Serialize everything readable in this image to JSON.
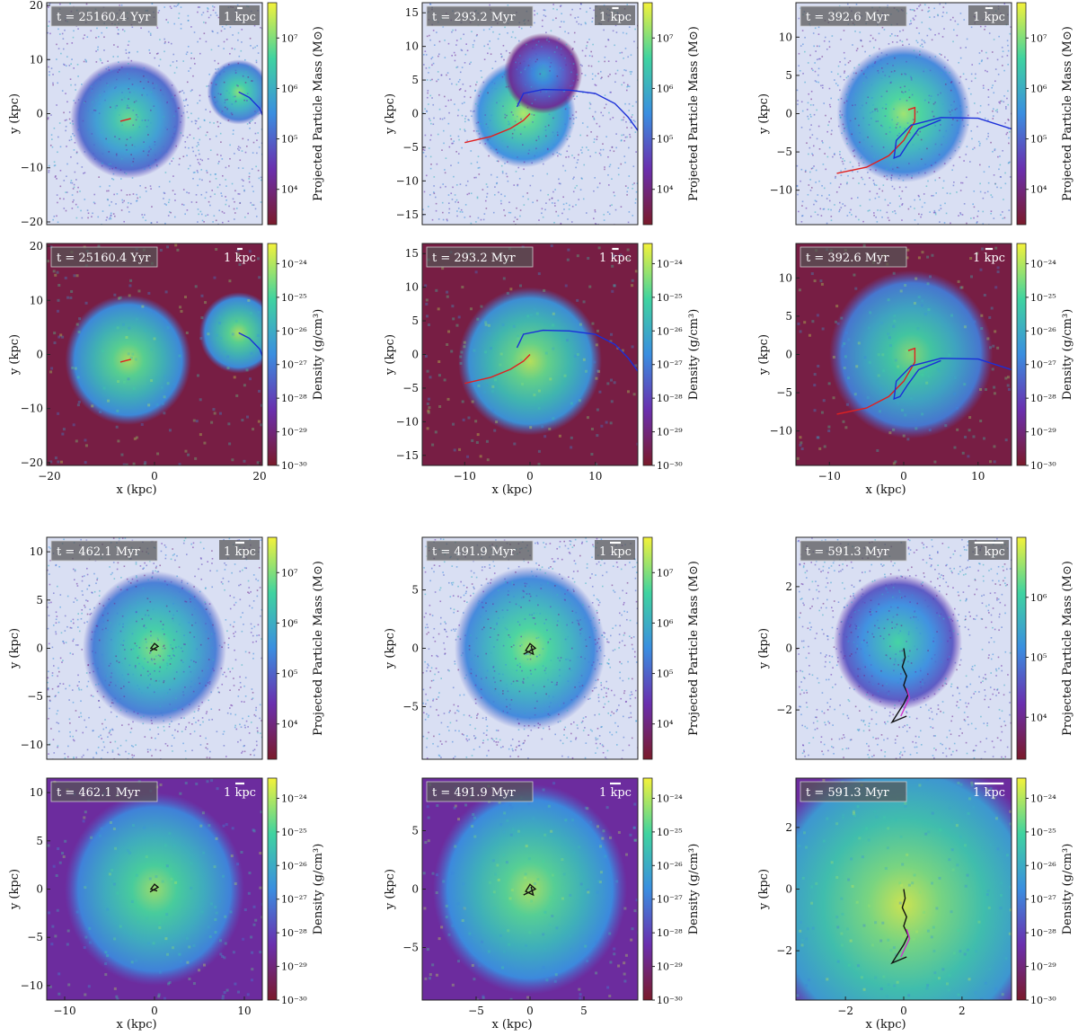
{
  "figure": {
    "x_axis_label": "x (kpc)",
    "y_axis_label": "y (kpc)",
    "scale_bar_label": "1 kpc",
    "particle_colorbar_label": "Projected Particle Mass",
    "particle_colorbar_unit": "(M⊙)",
    "density_colorbar_label": "Density",
    "density_colorbar_unit_num": "g",
    "density_colorbar_unit_den": "cm³"
  },
  "colors": {
    "colormap_low": "#7a1a2a",
    "colormap_mid_low": "#6a2fae",
    "colormap_mid": "#3a8ee0",
    "colormap_mid_high": "#3fd3a0",
    "colormap_high": "#f4f23a",
    "galaxy1_track": "#e02020",
    "galaxy2_track": "#1a2fd8",
    "merged_track": "#111111",
    "merged_track_2": "#cc33cc"
  },
  "chart_data": [
    {
      "type": "heatmap",
      "quantity": "particle",
      "time": "t = 25160.4 Yyr",
      "xlim": [
        -20.5,
        20.5
      ],
      "ylim": [
        -20.5,
        20.5
      ],
      "yticks": [
        -20,
        -10,
        0,
        10,
        20
      ],
      "xticks": [],
      "cbar_ticks": [
        "10⁴",
        "10⁵",
        "10⁶",
        "10⁷"
      ],
      "cbar_range": [
        3.3,
        7.7
      ],
      "blobs": [
        {
          "x": -5,
          "y": -1,
          "r": 11,
          "peak": 0.8
        },
        {
          "x": 16,
          "y": 4,
          "r": 6,
          "peak": 0.85
        }
      ],
      "tracks": [
        {
          "color": "galaxy1_track",
          "points": [
            [
              -6.5,
              -1.4
            ],
            [
              -4.5,
              -0.9
            ]
          ]
        },
        {
          "color": "galaxy2_track",
          "points": [
            [
              16,
              4
            ],
            [
              18,
              3
            ],
            [
              20,
              1
            ],
            [
              21,
              -1.5
            ]
          ]
        }
      ]
    },
    {
      "type": "heatmap",
      "quantity": "particle",
      "time": "t = 293.2 Myr",
      "xlim": [
        -16.5,
        16.5
      ],
      "ylim": [
        -16.5,
        16.5
      ],
      "yticks": [
        -15,
        -10,
        -5,
        0,
        5,
        10,
        15
      ],
      "xticks": [],
      "cbar_ticks": [
        "10⁴",
        "10⁵",
        "10⁶",
        "10⁷"
      ],
      "cbar_range": [
        3.3,
        7.7
      ],
      "blobs": [
        {
          "x": -1,
          "y": 0,
          "r": 8,
          "peak": 0.9
        },
        {
          "x": 2,
          "y": 6,
          "r": 6,
          "peak": 0.6
        }
      ],
      "tracks": [
        {
          "color": "galaxy1_track",
          "points": [
            [
              -10,
              -4.3
            ],
            [
              -6,
              -3.4
            ],
            [
              -3,
              -2.2
            ],
            [
              -1,
              -1
            ],
            [
              0,
              0
            ]
          ]
        },
        {
          "color": "galaxy2_track",
          "points": [
            [
              -2,
              1
            ],
            [
              -1,
              3
            ],
            [
              2,
              3.6
            ],
            [
              6,
              3.5
            ],
            [
              10,
              3
            ],
            [
              13,
              1.5
            ],
            [
              15,
              -0.5
            ],
            [
              16.5,
              -2.5
            ]
          ]
        }
      ]
    },
    {
      "type": "heatmap",
      "quantity": "particle",
      "time": "t = 392.6 Myr",
      "xlim": [
        -14.5,
        14.5
      ],
      "ylim": [
        -14.5,
        14.5
      ],
      "yticks": [
        -10,
        -5,
        0,
        5,
        10
      ],
      "xticks": [],
      "cbar_ticks": [
        "10⁴",
        "10⁵",
        "10⁶",
        "10⁷"
      ],
      "cbar_range": [
        3.3,
        7.7
      ],
      "blobs": [
        {
          "x": 0,
          "y": 0,
          "r": 9,
          "peak": 0.88
        }
      ],
      "tracks": [
        {
          "color": "galaxy1_track",
          "points": [
            [
              -9,
              -7.8
            ],
            [
              -5,
              -7
            ],
            [
              -2,
              -5.5
            ],
            [
              0,
              -3.5
            ],
            [
              1.5,
              -1
            ],
            [
              1.5,
              0.8
            ],
            [
              0.6,
              0.5
            ]
          ]
        },
        {
          "color": "galaxy2_track",
          "points": [
            [
              14.5,
              -2
            ],
            [
              10,
              -0.6
            ],
            [
              5,
              -0.5
            ],
            [
              1,
              -1.5
            ],
            [
              -1,
              -3.5
            ],
            [
              -1.3,
              -5.8
            ],
            [
              -0.5,
              -5.5
            ],
            [
              0.5,
              -4
            ],
            [
              2,
              -2
            ],
            [
              5,
              -0.8
            ]
          ]
        }
      ]
    },
    {
      "type": "heatmap",
      "quantity": "density",
      "time": "t = 25160.4 Yyr",
      "xlim": [
        -20.5,
        20.5
      ],
      "ylim": [
        -20.5,
        20.5
      ],
      "yticks": [
        -20,
        -10,
        0,
        10,
        20
      ],
      "xticks": [
        -20,
        0,
        20
      ],
      "cbar_ticks": [
        "10⁻³⁰",
        "10⁻²⁹",
        "10⁻²⁸",
        "10⁻²⁷",
        "10⁻²⁶",
        "10⁻²⁵",
        "10⁻²⁴"
      ],
      "cbar_range": [
        -30,
        -23.4
      ],
      "blobs": [
        {
          "x": -5,
          "y": -1,
          "r": 12,
          "peak": 0.9
        },
        {
          "x": 16,
          "y": 4,
          "r": 7.5,
          "peak": 0.9
        }
      ],
      "tracks": [
        {
          "color": "galaxy1_track",
          "points": [
            [
              -6.5,
              -1.4
            ],
            [
              -4.5,
              -0.9
            ]
          ]
        },
        {
          "color": "galaxy2_track",
          "points": [
            [
              16,
              4
            ],
            [
              18,
              3
            ],
            [
              20,
              1
            ],
            [
              21,
              -1.5
            ]
          ]
        }
      ]
    },
    {
      "type": "heatmap",
      "quantity": "density",
      "time": "t = 293.2 Myr",
      "xlim": [
        -16.5,
        16.5
      ],
      "ylim": [
        -16.5,
        16.5
      ],
      "yticks": [
        -15,
        -10,
        -5,
        0,
        5,
        10,
        15
      ],
      "xticks": [
        -10,
        0,
        10
      ],
      "cbar_ticks": [
        "10⁻³⁰",
        "10⁻²⁹",
        "10⁻²⁸",
        "10⁻²⁷",
        "10⁻²⁶",
        "10⁻²⁵",
        "10⁻²⁴"
      ],
      "cbar_range": [
        -30,
        -23.4
      ],
      "blobs": [
        {
          "x": 0,
          "y": -1,
          "r": 11,
          "peak": 0.92
        }
      ],
      "tracks": [
        {
          "color": "galaxy1_track",
          "points": [
            [
              -10,
              -4.3
            ],
            [
              -6,
              -3.4
            ],
            [
              -3,
              -2.2
            ],
            [
              -1,
              -1
            ],
            [
              0,
              0
            ]
          ]
        },
        {
          "color": "galaxy2_track",
          "points": [
            [
              -2,
              1
            ],
            [
              -1,
              3
            ],
            [
              2,
              3.6
            ],
            [
              6,
              3.5
            ],
            [
              10,
              3
            ],
            [
              13,
              1.5
            ],
            [
              15,
              -0.5
            ],
            [
              16.5,
              -2.5
            ]
          ]
        }
      ]
    },
    {
      "type": "heatmap",
      "quantity": "density",
      "time": "t = 392.6 Myr",
      "xlim": [
        -14.5,
        14.5
      ],
      "ylim": [
        -14.5,
        14.5
      ],
      "yticks": [
        -10,
        -5,
        0,
        5,
        10
      ],
      "xticks": [
        -10,
        0,
        10
      ],
      "cbar_ticks": [
        "10⁻³⁰",
        "10⁻²⁹",
        "10⁻²⁸",
        "10⁻²⁷",
        "10⁻²⁶",
        "10⁻²⁵",
        "10⁻²⁴"
      ],
      "cbar_range": [
        -30,
        -23.4
      ],
      "blobs": [
        {
          "x": 1,
          "y": 0,
          "r": 11,
          "peak": 0.85
        }
      ],
      "tracks": [
        {
          "color": "galaxy1_track",
          "points": [
            [
              -9,
              -7.8
            ],
            [
              -5,
              -7
            ],
            [
              -2,
              -5.5
            ],
            [
              0,
              -3.5
            ],
            [
              1.5,
              -1
            ],
            [
              1.5,
              0.8
            ],
            [
              0.6,
              0.5
            ]
          ]
        },
        {
          "color": "galaxy2_track",
          "points": [
            [
              14.5,
              -2
            ],
            [
              10,
              -0.6
            ],
            [
              5,
              -0.5
            ],
            [
              1,
              -1.5
            ],
            [
              -1,
              -3.5
            ],
            [
              -1.3,
              -5.8
            ],
            [
              -0.5,
              -5.5
            ],
            [
              0.5,
              -4
            ],
            [
              2,
              -2
            ],
            [
              5,
              -0.8
            ]
          ]
        }
      ]
    },
    {
      "type": "heatmap",
      "quantity": "particle",
      "time": "t = 462.1 Myr",
      "xlim": [
        -12,
        12
      ],
      "ylim": [
        -11.5,
        11.5
      ],
      "yticks": [
        -10,
        -5,
        0,
        5,
        10
      ],
      "xticks": [],
      "cbar_ticks": [
        "10⁴",
        "10⁵",
        "10⁶",
        "10⁷"
      ],
      "cbar_range": [
        3.3,
        7.7
      ],
      "blobs": [
        {
          "x": 0,
          "y": 0,
          "r": 8,
          "peak": 0.85
        }
      ],
      "tracks": [
        {
          "color": "merged_track",
          "points": [
            [
              -0.5,
              -0.3
            ],
            [
              0.4,
              0.2
            ],
            [
              0,
              0.5
            ],
            [
              -0.4,
              0
            ],
            [
              0.3,
              -0.2
            ]
          ]
        }
      ]
    },
    {
      "type": "heatmap",
      "quantity": "particle",
      "time": "t = 491.9 Myr",
      "xlim": [
        -10,
        10
      ],
      "ylim": [
        -9.5,
        9.5
      ],
      "yticks": [
        -5,
        0,
        5
      ],
      "xticks": [],
      "cbar_ticks": [
        "10⁴",
        "10⁵",
        "10⁶",
        "10⁷"
      ],
      "cbar_range": [
        3.3,
        7.7
      ],
      "blobs": [
        {
          "x": 0,
          "y": 0,
          "r": 7,
          "peak": 0.88
        }
      ],
      "tracks": [
        {
          "color": "merged_track",
          "points": [
            [
              -0.6,
              -0.5
            ],
            [
              0.5,
              0
            ],
            [
              0,
              0.4
            ],
            [
              -0.4,
              -0.2
            ],
            [
              0.3,
              -0.5
            ],
            [
              0.1,
              0.2
            ]
          ]
        }
      ]
    },
    {
      "type": "heatmap",
      "quantity": "particle",
      "time": "t = 591.3 Myr",
      "xlim": [
        -3.7,
        3.7
      ],
      "ylim": [
        -3.6,
        3.6
      ],
      "yticks": [
        -2,
        0,
        2
      ],
      "xticks": [],
      "cbar_ticks": [
        "10⁴",
        "10⁵",
        "10⁶"
      ],
      "cbar_range": [
        3.3,
        7.0
      ],
      "blobs": [
        {
          "x": -0.2,
          "y": 0.2,
          "r": 2.2,
          "peak": 0.75
        }
      ],
      "tracks": [
        {
          "color": "merged_track",
          "points": [
            [
              0,
              0
            ],
            [
              0.05,
              -0.3
            ],
            [
              -0.05,
              -0.6
            ],
            [
              0.1,
              -0.9
            ],
            [
              0,
              -1.2
            ],
            [
              0.15,
              -1.5
            ],
            [
              0,
              -1.8
            ],
            [
              -0.2,
              -2.1
            ],
            [
              -0.4,
              -2.4
            ],
            [
              0.1,
              -2.2
            ]
          ]
        },
        {
          "color": "merged_track_2",
          "points": [
            [
              0.1,
              -1.3
            ],
            [
              0.2,
              -1.6
            ],
            [
              0.05,
              -1.9
            ],
            [
              -0.1,
              -2.2
            ]
          ]
        }
      ]
    },
    {
      "type": "heatmap",
      "quantity": "density",
      "time": "t = 462.1 Myr",
      "xlim": [
        -12,
        12
      ],
      "ylim": [
        -11.5,
        11.5
      ],
      "yticks": [
        -10,
        -5,
        0,
        5,
        10
      ],
      "xticks": [
        -10,
        0,
        10
      ],
      "cbar_ticks": [
        "10⁻³⁰",
        "10⁻²⁹",
        "10⁻²⁸",
        "10⁻²⁷",
        "10⁻²⁶",
        "10⁻²⁵",
        "10⁻²⁴"
      ],
      "cbar_range": [
        -30,
        -23.4
      ],
      "blobs": [
        {
          "x": 0,
          "y": 0,
          "r": 10,
          "peak": 0.88
        }
      ],
      "tracks": [
        {
          "color": "merged_track",
          "points": [
            [
              -0.5,
              -0.3
            ],
            [
              0.4,
              0.2
            ],
            [
              0,
              0.5
            ],
            [
              -0.4,
              0
            ],
            [
              0.3,
              -0.2
            ]
          ]
        }
      ]
    },
    {
      "type": "heatmap",
      "quantity": "density",
      "time": "t = 491.9 Myr",
      "xlim": [
        -10,
        10
      ],
      "ylim": [
        -9.5,
        9.5
      ],
      "yticks": [
        -5,
        0,
        5
      ],
      "xticks": [
        -5,
        0,
        5
      ],
      "cbar_ticks": [
        "10⁻³⁰",
        "10⁻²⁹",
        "10⁻²⁸",
        "10⁻²⁷",
        "10⁻²⁶",
        "10⁻²⁵",
        "10⁻²⁴"
      ],
      "cbar_range": [
        -30,
        -23.4
      ],
      "blobs": [
        {
          "x": 0,
          "y": 0,
          "r": 9,
          "peak": 0.9
        }
      ],
      "tracks": [
        {
          "color": "merged_track",
          "points": [
            [
              -0.6,
              -0.5
            ],
            [
              0.5,
              0
            ],
            [
              0,
              0.4
            ],
            [
              -0.4,
              -0.2
            ],
            [
              0.3,
              -0.5
            ],
            [
              0.1,
              0.2
            ]
          ]
        }
      ]
    },
    {
      "type": "heatmap",
      "quantity": "density",
      "time": "t = 591.3 Myr",
      "xlim": [
        -3.7,
        3.7
      ],
      "ylim": [
        -3.6,
        3.6
      ],
      "yticks": [
        -2,
        0,
        2
      ],
      "xticks": [
        -2,
        0,
        2
      ],
      "cbar_ticks": [
        "10⁻³⁰",
        "10⁻²⁹",
        "10⁻²⁸",
        "10⁻²⁷",
        "10⁻²⁶",
        "10⁻²⁵",
        "10⁻²⁴"
      ],
      "cbar_range": [
        -30,
        -23.4
      ],
      "blobs": [
        {
          "x": 0,
          "y": -0.5,
          "r": 5,
          "peak": 0.95
        }
      ],
      "tracks": [
        {
          "color": "merged_track",
          "points": [
            [
              0,
              0
            ],
            [
              0.05,
              -0.3
            ],
            [
              -0.05,
              -0.6
            ],
            [
              0.1,
              -0.9
            ],
            [
              0,
              -1.2
            ],
            [
              0.15,
              -1.5
            ],
            [
              0,
              -1.8
            ],
            [
              -0.2,
              -2.1
            ],
            [
              -0.4,
              -2.4
            ],
            [
              0.1,
              -2.2
            ]
          ]
        },
        {
          "color": "merged_track_2",
          "points": [
            [
              0.1,
              -1.3
            ],
            [
              0.2,
              -1.6
            ],
            [
              0.05,
              -1.9
            ],
            [
              -0.1,
              -2.2
            ]
          ]
        }
      ]
    }
  ]
}
